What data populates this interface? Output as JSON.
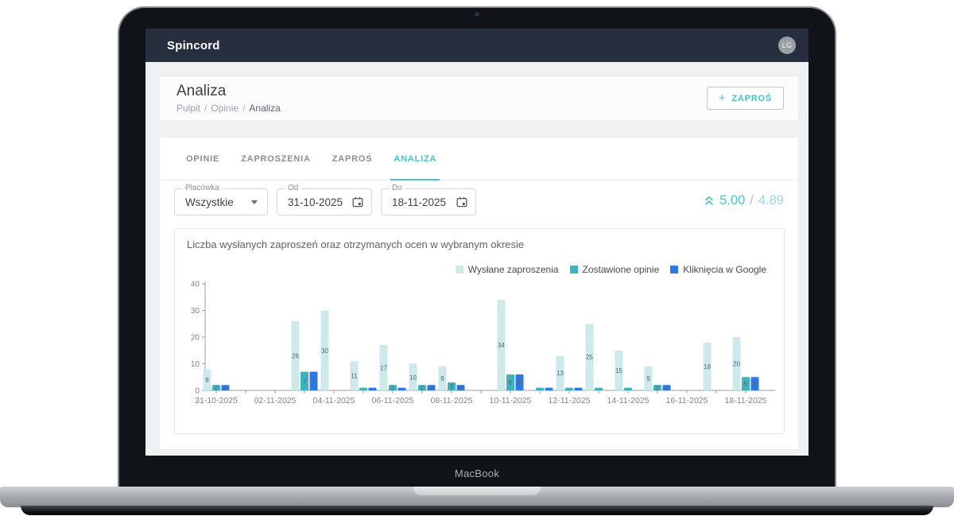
{
  "device": {
    "label": "MacBook"
  },
  "navbar": {
    "brand": "Spincord",
    "avatar_initials": "LG"
  },
  "header": {
    "title": "Analiza",
    "breadcrumb": [
      {
        "label": "Pulpit"
      },
      {
        "label": "Opinie"
      },
      {
        "label": "Analiza"
      }
    ],
    "breadcrumb_separator": "/",
    "invite_button": {
      "plus": "+",
      "label": "ZAPROŚ"
    }
  },
  "tabs": [
    {
      "label": "OPINIE",
      "active": false
    },
    {
      "label": "ZAPROSZENIA",
      "active": false
    },
    {
      "label": "ZAPROŚ",
      "active": false
    },
    {
      "label": "ANALIZA",
      "active": true
    }
  ],
  "filters": [
    {
      "label": "Placówka",
      "value": "Wszystkie",
      "icon": "caret-down"
    },
    {
      "label": "Od",
      "value": "31-10-2025",
      "icon": "calendar"
    },
    {
      "label": "Do",
      "value": "18-11-2025",
      "icon": "calendar"
    }
  ],
  "rating": {
    "icon": "double-chevron-up",
    "current": "5.00",
    "separator": "/",
    "previous": "4.89"
  },
  "chart_data": {
    "type": "bar",
    "title": "Liczba wysłanych zaproszeń oraz otrzymanych ocen w wybranym okresie",
    "categories": [
      "31-10-2025",
      "01-11-2025",
      "02-11-2025",
      "03-11-2025",
      "04-11-2025",
      "05-11-2025",
      "06-11-2025",
      "07-11-2025",
      "08-11-2025",
      "09-11-2025",
      "10-11-2025",
      "11-11-2025",
      "12-11-2025",
      "13-11-2025",
      "14-11-2025",
      "15-11-2025",
      "16-11-2025",
      "17-11-2025",
      "18-11-2025"
    ],
    "x_label_every": 2,
    "series": [
      {
        "name": "Wysłane zaproszenia",
        "color": "#cde9ec",
        "values": [
          8,
          0,
          0,
          26,
          30,
          11,
          17,
          10,
          9,
          0,
          34,
          0,
          13,
          25,
          15,
          9,
          0,
          18,
          20
        ]
      },
      {
        "name": "Zostawione opinie",
        "color": "#3fb2be",
        "values": [
          2,
          0,
          0,
          7,
          0,
          1,
          2,
          2,
          3,
          0,
          6,
          1,
          1,
          1,
          1,
          2,
          0,
          0,
          5
        ]
      },
      {
        "name": "Kliknięcia w Google",
        "color": "#2e77e6",
        "values": [
          2,
          0,
          0,
          7,
          0,
          1,
          1,
          2,
          2,
          0,
          6,
          1,
          1,
          0,
          0,
          2,
          0,
          0,
          5
        ]
      }
    ],
    "ylim": [
      0,
      40
    ],
    "yticks": [
      0,
      10,
      20,
      30,
      40
    ],
    "legend_position": "top-right",
    "grid": false,
    "value_label_min": 2,
    "axis_color": "#9aa0a6",
    "tick_text_color": "#7f858b",
    "value_label_color": "#51666e"
  }
}
